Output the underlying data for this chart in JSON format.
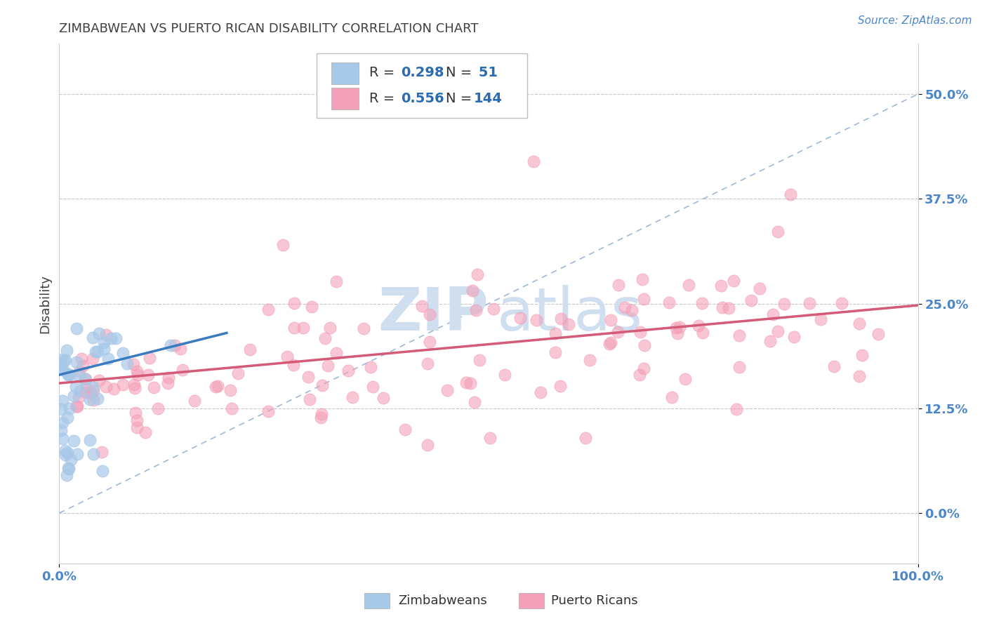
{
  "title": "ZIMBABWEAN VS PUERTO RICAN DISABILITY CORRELATION CHART",
  "source": "Source: ZipAtlas.com",
  "ylabel": "Disability",
  "xlim": [
    0.0,
    1.0
  ],
  "ylim": [
    -0.06,
    0.56
  ],
  "yticks": [
    0.0,
    0.125,
    0.25,
    0.375,
    0.5
  ],
  "ytick_labels": [
    "0.0%",
    "12.5%",
    "25.0%",
    "37.5%",
    "50.0%"
  ],
  "xticks": [
    0.0,
    1.0
  ],
  "xtick_labels": [
    "0.0%",
    "100.0%"
  ],
  "blue_color": "#a8c8e8",
  "pink_color": "#f4a0b8",
  "blue_line_color": "#3a7abf",
  "pink_line_color": "#d45a78",
  "diagonal_color": "#a0b8d8",
  "background_color": "#ffffff",
  "grid_color": "#c8c8c8",
  "title_color": "#404040",
  "axis_label_color": "#404040",
  "tick_label_color": "#4a86c8",
  "legend_value_color": "#2b6cb0",
  "watermark_color": "#d0dff0",
  "blue_line": {
    "x0": 0.0,
    "x1": 0.195,
    "y0": 0.165,
    "y1": 0.215
  },
  "pink_line": {
    "x0": 0.0,
    "x1": 1.0,
    "y0": 0.155,
    "y1": 0.248
  }
}
